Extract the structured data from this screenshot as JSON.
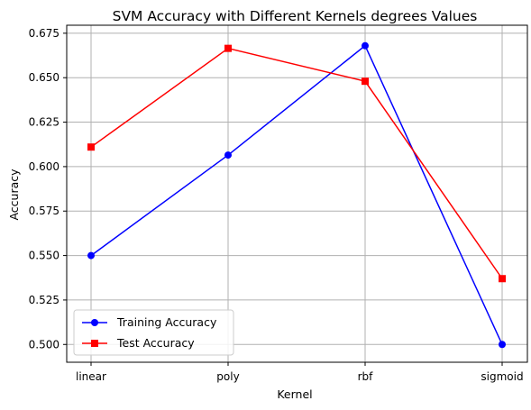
{
  "chart_data": {
    "type": "line",
    "title": "SVM Accuracy with Different Kernels degrees Values",
    "xlabel": "Kernel",
    "ylabel": "Accuracy",
    "categories": [
      "linear",
      "poly",
      "rbf",
      "sigmoid"
    ],
    "ylim": [
      0.49,
      0.6795
    ],
    "yticks": [
      0.5,
      0.525,
      0.55,
      0.575,
      0.6,
      0.625,
      0.65,
      0.675
    ],
    "ytick_labels": [
      "0.500",
      "0.525",
      "0.550",
      "0.575",
      "0.600",
      "0.625",
      "0.650",
      "0.675"
    ],
    "grid": true,
    "legend_position": "lower-left",
    "series": [
      {
        "name": "Training Accuracy",
        "color": "#0000ff",
        "marker": "circle",
        "values": [
          0.55,
          0.6065,
          0.668,
          0.5
        ]
      },
      {
        "name": "Test Accuracy",
        "color": "#ff0000",
        "marker": "square",
        "values": [
          0.611,
          0.6665,
          0.648,
          0.537
        ]
      }
    ]
  }
}
